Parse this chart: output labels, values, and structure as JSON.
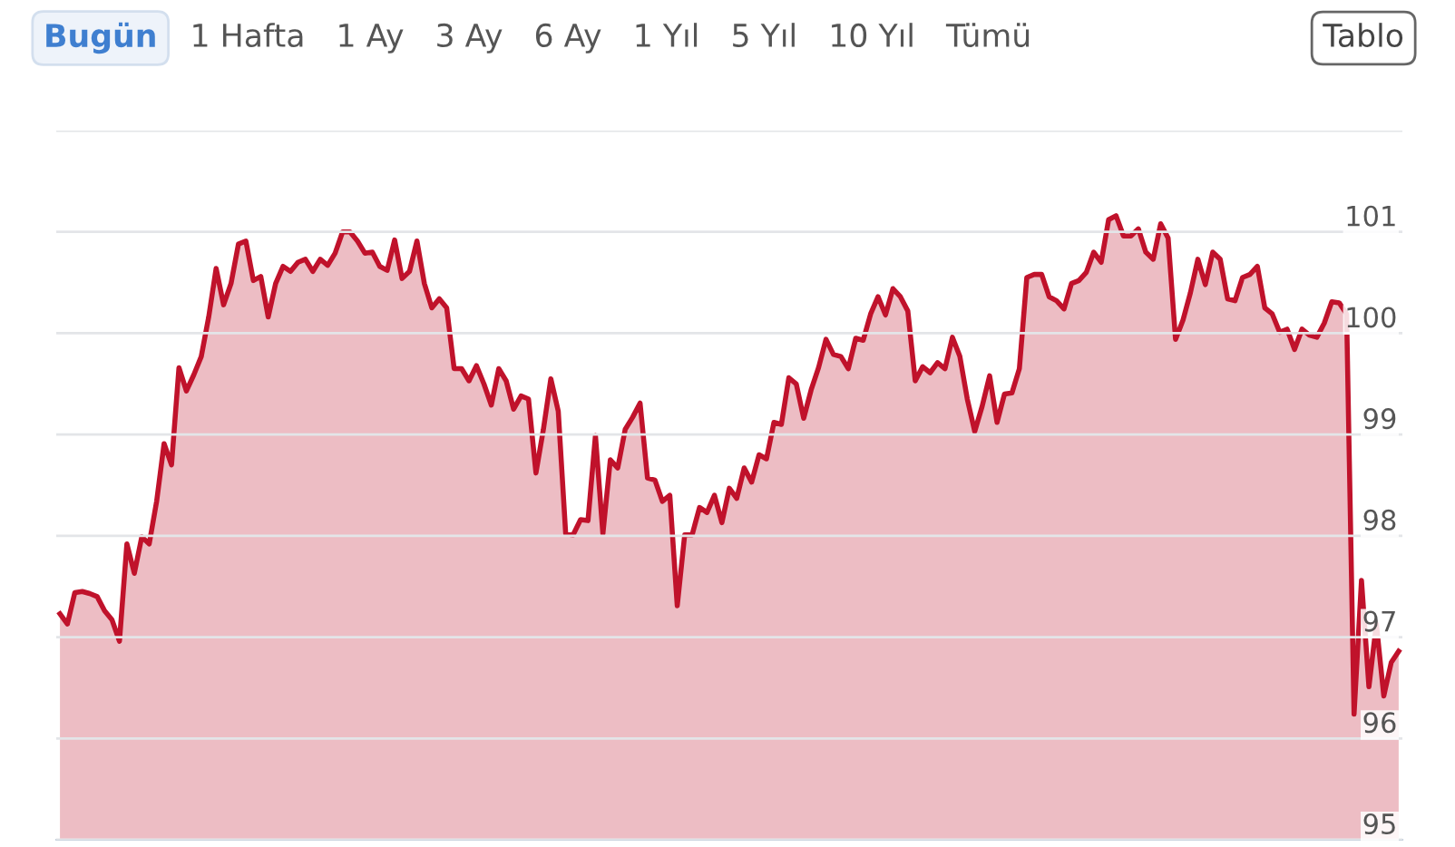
{
  "chart_data": {
    "type": "area",
    "annotations": [
      "Bugün",
      "1 Hafta",
      "1 Ay",
      "3 Ay",
      "6 Ay",
      "1 Yıl",
      "5 Yıl",
      "10 Yıl",
      "Tümü",
      "Tablo"
    ],
    "categories": [
      null,
      null,
      null,
      null,
      null,
      null,
      null,
      null,
      null,
      null,
      null,
      null,
      null,
      null,
      null,
      null,
      null,
      null,
      null,
      null,
      null,
      null,
      null,
      null,
      null,
      null,
      null,
      null,
      null,
      null,
      null,
      null,
      null,
      null,
      null,
      null,
      null,
      null,
      null,
      null,
      null,
      null,
      null,
      null,
      null,
      null,
      null,
      null,
      null,
      null,
      null,
      null,
      null,
      null,
      null,
      null,
      null,
      null,
      null,
      null,
      null,
      null,
      null,
      null,
      null,
      null,
      null,
      null,
      null,
      null,
      null,
      null,
      null,
      null,
      null,
      null,
      null,
      null,
      null,
      null,
      null,
      null,
      null,
      null,
      null,
      null,
      null,
      null,
      null,
      null,
      null,
      null,
      null,
      null,
      null,
      null,
      null,
      null,
      null,
      null,
      null,
      null,
      null,
      null,
      null,
      null,
      null,
      null,
      null,
      null,
      null,
      null,
      null,
      null,
      null,
      null,
      null,
      null,
      null,
      null,
      null,
      null,
      null,
      null,
      null,
      null,
      null,
      null,
      null,
      null,
      null,
      null,
      null,
      null,
      null,
      null,
      null,
      null,
      null,
      null,
      null,
      null,
      null,
      null,
      null,
      null,
      null,
      null,
      null,
      null,
      null,
      null,
      null,
      null,
      null,
      null,
      null,
      null,
      null,
      null,
      null,
      null,
      null,
      null,
      null,
      null,
      null,
      null,
      null,
      null,
      null,
      null,
      null,
      null,
      null,
      null,
      null,
      null,
      null,
      null,
      null
    ],
    "series": [
      {
        "color": "#c0122b",
        "values": [
          97.23,
          97.13,
          97.44,
          97.45,
          97.43,
          97.4,
          97.26,
          97.17,
          96.96,
          97.92,
          97.63,
          97.99,
          97.92,
          98.34,
          98.91,
          98.7,
          99.66,
          99.43,
          99.59,
          99.77,
          100.16,
          100.64,
          100.28,
          100.49,
          100.88,
          100.91,
          100.52,
          100.56,
          100.16,
          100.49,
          100.66,
          100.61,
          100.7,
          100.73,
          100.61,
          100.73,
          100.67,
          100.79,
          101.0,
          101.0,
          100.91,
          100.79,
          100.8,
          100.66,
          100.62,
          100.92,
          100.54,
          100.61,
          100.91,
          100.49,
          100.25,
          100.34,
          100.25,
          99.65,
          99.65,
          99.53,
          99.68,
          99.5,
          99.29,
          99.65,
          99.53,
          99.25,
          99.38,
          99.35,
          98.62,
          99.05,
          99.55,
          99.23,
          98.02,
          98.01,
          98.16,
          98.15,
          98.99,
          98.02,
          98.75,
          98.67,
          99.05,
          99.17,
          99.31,
          98.57,
          98.55,
          98.34,
          98.4,
          97.31,
          98.01,
          98.01,
          98.28,
          98.23,
          98.4,
          98.13,
          98.47,
          98.37,
          98.67,
          98.53,
          98.8,
          98.76,
          99.12,
          99.1,
          99.56,
          99.5,
          99.16,
          99.44,
          99.66,
          99.94,
          99.79,
          99.77,
          99.65,
          99.95,
          99.93,
          100.19,
          100.36,
          100.18,
          100.44,
          100.36,
          100.22,
          99.53,
          99.67,
          99.61,
          99.71,
          99.65,
          99.96,
          99.77,
          99.35,
          99.03,
          99.28,
          99.58,
          99.12,
          99.4,
          99.41,
          99.65,
          100.55,
          100.58,
          100.58,
          100.36,
          100.32,
          100.24,
          100.49,
          100.52,
          100.6,
          100.8,
          100.7,
          101.12,
          101.16,
          100.96,
          100.96,
          101.03,
          100.8,
          100.73,
          101.08,
          100.94,
          99.94,
          100.13,
          100.4,
          100.73,
          100.48,
          100.8,
          100.73,
          100.34,
          100.32,
          100.55,
          100.58,
          100.66,
          100.25,
          100.19,
          100.01,
          100.04,
          99.84,
          100.04,
          99.98,
          99.96,
          100.1,
          100.31,
          100.3,
          100.19,
          96.24,
          97.56,
          96.51,
          97.13,
          96.42,
          96.75,
          96.86
        ]
      }
    ],
    "ylim": [
      95,
      102
    ],
    "yticks": [
      95,
      96,
      97,
      98,
      99,
      100,
      101,
      {
        "value": 102,
        "label": null
      }
    ],
    "grid": "y",
    "tick_labels": "y"
  }
}
